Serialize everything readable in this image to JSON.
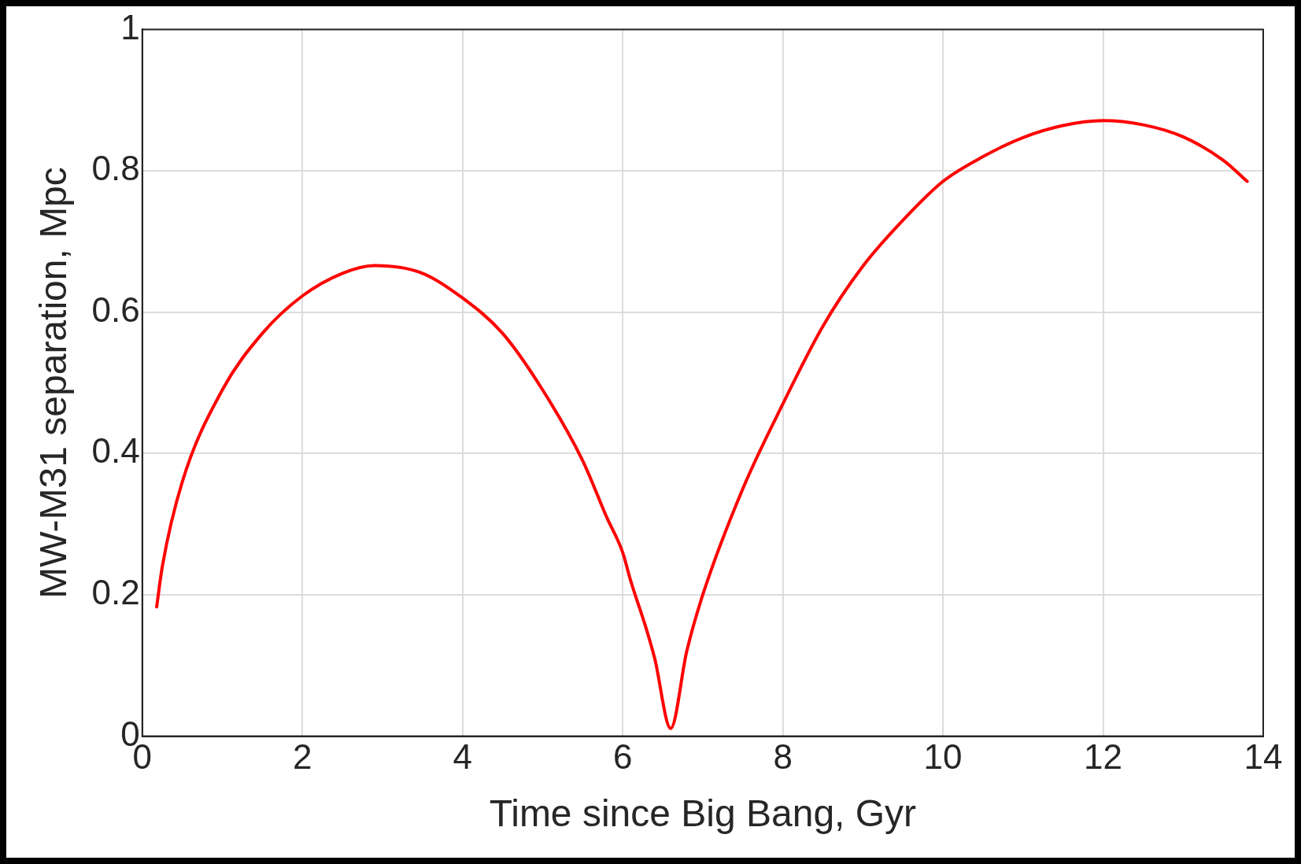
{
  "chart_data": {
    "type": "line",
    "xlabel": "Time since Big Bang, Gyr",
    "ylabel": "MW-M31 separation, Mpc",
    "x": [
      0.18,
      0.25,
      0.5,
      1,
      1.5,
      2,
      2.5,
      2.9,
      3.5,
      4,
      4.5,
      5,
      5.5,
      5.8,
      6,
      6.1,
      6.3,
      6.4,
      6.6,
      6.8,
      7,
      7.5,
      8,
      8.5,
      9,
      9.5,
      10,
      10.5,
      11,
      11.5,
      12,
      12.5,
      13,
      13.5,
      13.8
    ],
    "series": [
      {
        "color": "#ff0000",
        "values": [
          0.183,
          0.24,
          0.36,
          0.49,
          0.57,
          0.623,
          0.655,
          0.666,
          0.655,
          0.62,
          0.57,
          0.49,
          0.39,
          0.31,
          0.26,
          0.22,
          0.15,
          0.11,
          0.011,
          0.12,
          0.2,
          0.35,
          0.47,
          0.58,
          0.665,
          0.73,
          0.785,
          0.82,
          0.847,
          0.864,
          0.871,
          0.865,
          0.848,
          0.815,
          0.785
        ]
      }
    ],
    "xlim": [
      0,
      14
    ],
    "xticks": [
      0,
      2,
      4,
      6,
      8,
      10,
      12,
      14
    ],
    "ylim": [
      0,
      1
    ],
    "yticks": [
      0,
      0.2,
      0.4,
      0.6,
      0.8,
      1
    ],
    "grid": true,
    "legend": false,
    "marker": "none",
    "line_style": "solid"
  }
}
